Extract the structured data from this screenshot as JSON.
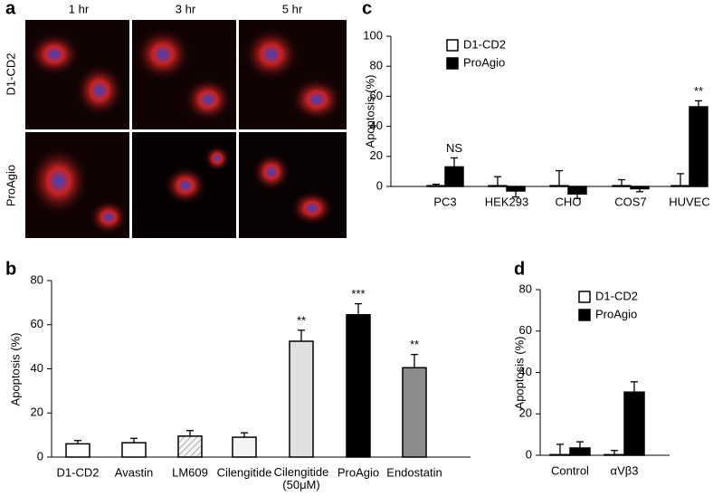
{
  "panel_a": {
    "panel_label": "a",
    "columns": [
      "1 hr",
      "3 hr",
      "5 hr"
    ],
    "rows": [
      "D1-CD2",
      "ProAgio"
    ]
  },
  "chart_data": [
    {
      "type": "bar",
      "panel_label": "b",
      "y_label": "Apoptosis (%)",
      "categories": [
        "D1-CD2",
        "Avastin",
        "LM609",
        "Cilengitide",
        "Cilengitide\n(50μM)",
        "ProAgio",
        "Endostatin"
      ],
      "values": [
        6,
        6.5,
        9.5,
        9,
        52.5,
        64.5,
        40.5
      ],
      "errors": [
        1.5,
        2,
        2.5,
        2,
        5,
        5,
        6
      ],
      "colors": [
        "#ffffff",
        "#ffffff",
        "#ececec",
        "#f4f4f4",
        "#e0e0e0",
        "#000000",
        "#8c8c8c"
      ],
      "hatched": [
        false,
        false,
        true,
        false,
        false,
        false,
        false
      ],
      "significance": [
        null,
        null,
        null,
        null,
        "**",
        "***",
        "**"
      ],
      "ylim": [
        0,
        80
      ],
      "yticks": [
        0,
        20,
        40,
        60,
        80
      ]
    },
    {
      "type": "bar",
      "panel_label": "c",
      "y_label": "Apoptosis (%)",
      "categories": [
        "PC3",
        "HEK293",
        "CHO",
        "COS7",
        "HUVEC"
      ],
      "series": [
        {
          "name": "D1-CD2",
          "color": "#ffffff",
          "values": [
            0.5,
            0.5,
            0.5,
            0.5,
            0.5
          ],
          "errors": [
            1,
            6,
            10,
            4,
            8
          ],
          "significance": [
            null,
            null,
            null,
            null,
            null
          ]
        },
        {
          "name": "ProAgio",
          "color": "#000000",
          "values": [
            13,
            -3,
            -5,
            -1.5,
            53
          ],
          "errors": [
            6,
            4,
            3,
            2,
            4
          ],
          "significance": [
            "NS",
            null,
            null,
            null,
            "**"
          ]
        }
      ],
      "legend": "upper left",
      "ylim": [
        0,
        100
      ],
      "yticks": [
        0,
        20,
        40,
        60,
        80,
        100
      ]
    },
    {
      "type": "bar",
      "panel_label": "d",
      "y_label": "Apoptosis (%)",
      "categories": [
        "Control",
        "αVβ3"
      ],
      "series": [
        {
          "name": "D1-CD2",
          "color": "#ffffff",
          "values": [
            0.3,
            0.3
          ],
          "errors": [
            5,
            2
          ],
          "significance": [
            null,
            null
          ]
        },
        {
          "name": "ProAgio",
          "color": "#000000",
          "values": [
            3.5,
            30.5
          ],
          "errors": [
            3,
            5
          ],
          "significance": [
            null,
            null
          ]
        }
      ],
      "legend": "upper left",
      "ylim": [
        0,
        80
      ],
      "yticks": [
        0,
        20,
        40,
        60,
        80
      ]
    }
  ]
}
